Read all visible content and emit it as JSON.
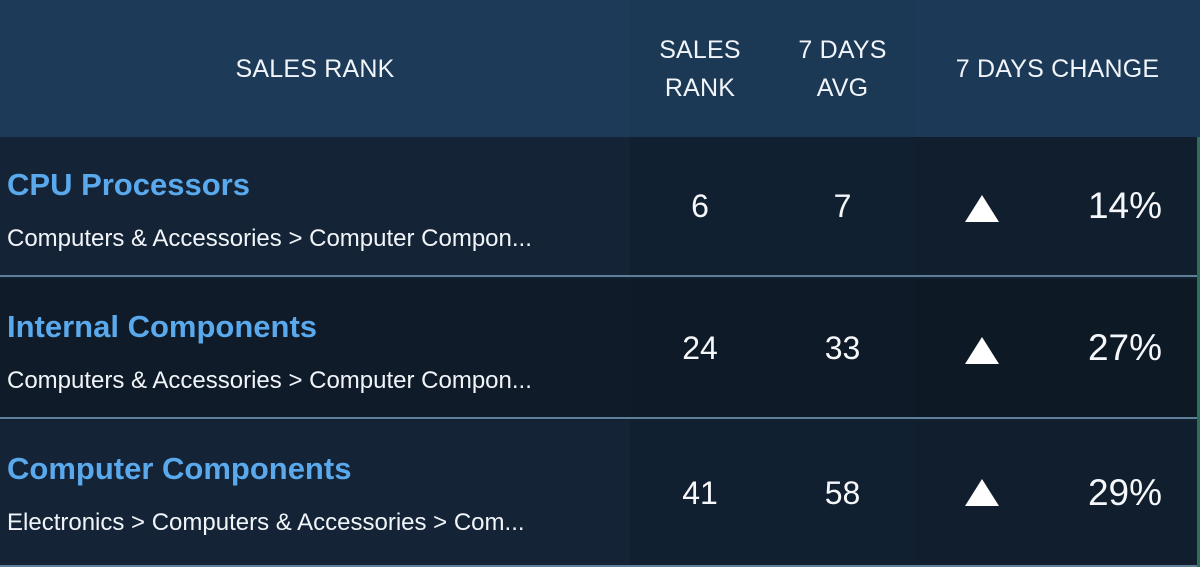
{
  "header": {
    "name_col": "SALES RANK",
    "rank_col": "SALES\nRANK",
    "avg_col": "7 DAYS\nAVG",
    "change_col": "7 DAYS CHANGE"
  },
  "rows": [
    {
      "title": "CPU Processors",
      "path": "Computers & Accessories > Computer Compon...",
      "rank": "6",
      "avg": "7",
      "change": "14%",
      "trend": "up-triangle-icon"
    },
    {
      "title": "Internal Components",
      "path": "Computers & Accessories > Computer Compon...",
      "rank": "24",
      "avg": "33",
      "change": "27%",
      "trend": "up-triangle-icon"
    },
    {
      "title": "Computer Components",
      "path": "Electronics > Computers & Accessories > Com...",
      "rank": "41",
      "avg": "58",
      "change": "29%",
      "trend": "up-triangle-icon"
    }
  ],
  "colors": {
    "header_bg": "#1c3a57",
    "link": "#5aa9ec",
    "text": "#f1f5f9",
    "row_bg": "#142436",
    "divider": "#5f7e99"
  }
}
